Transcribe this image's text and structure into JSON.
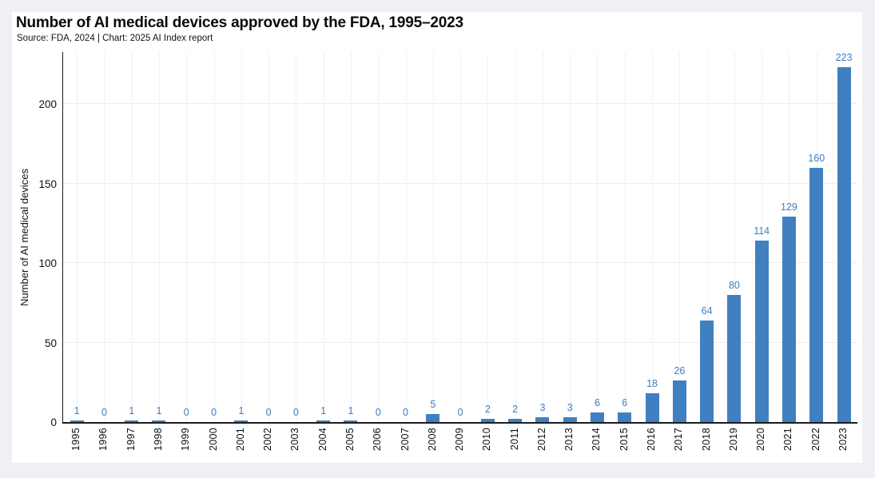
{
  "chart_data": {
    "type": "bar",
    "title": "Number of AI medical devices approved by the FDA, 1995–2023",
    "subtitle": "Source: FDA, 2024 | Chart: 2025 AI Index report",
    "ylabel": "Number of AI medical devices",
    "xlabel": "",
    "categories": [
      "1995",
      "1996",
      "1997",
      "1998",
      "1999",
      "2000",
      "2001",
      "2002",
      "2003",
      "2004",
      "2005",
      "2006",
      "2007",
      "2008",
      "2009",
      "2010",
      "2011",
      "2012",
      "2013",
      "2014",
      "2015",
      "2016",
      "2017",
      "2018",
      "2019",
      "2020",
      "2021",
      "2022",
      "2023"
    ],
    "values": [
      1,
      0,
      1,
      1,
      0,
      0,
      1,
      0,
      0,
      1,
      1,
      0,
      0,
      5,
      0,
      2,
      2,
      3,
      3,
      6,
      6,
      18,
      26,
      64,
      80,
      114,
      129,
      160,
      223
    ],
    "yticks": [
      0,
      50,
      100,
      150,
      200
    ],
    "ylim": [
      0,
      233
    ],
    "grid": true,
    "legend": "none",
    "data_labels": true,
    "bar_color": "#4080c0",
    "label_color": "#3c7ec5",
    "axis_color": "#1c1c1c",
    "background_color": "#ffffff",
    "page_background": "#eef0f3"
  }
}
